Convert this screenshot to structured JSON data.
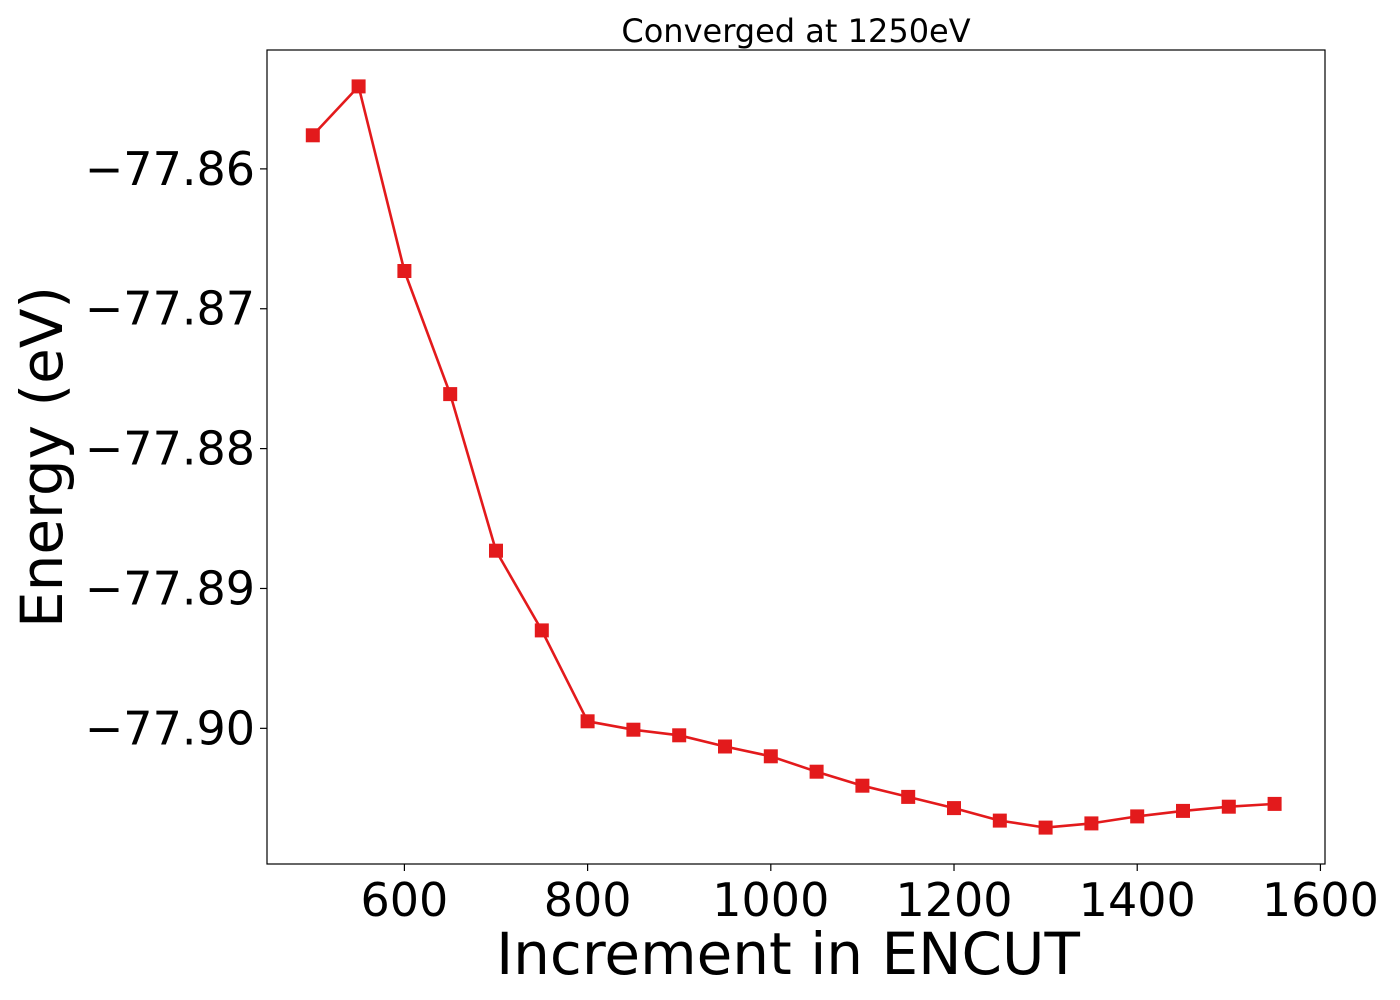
{
  "chart_data": {
    "type": "line",
    "title": "Converged at 1250eV",
    "xlabel": "Increment in ENCUT",
    "ylabel": "Energy (eV)",
    "xlim": [
      450,
      1605
    ],
    "ylim": [
      -77.9097,
      -77.8515
    ],
    "x_ticks": [
      600,
      800,
      1000,
      1200,
      1400,
      1600
    ],
    "x_tick_labels": [
      "600",
      "800",
      "1000",
      "1200",
      "1400",
      "1600"
    ],
    "y_ticks": [
      -77.86,
      -77.87,
      -77.88,
      -77.89,
      -77.9
    ],
    "y_tick_labels": [
      "−77.86",
      "−77.87",
      "−77.88",
      "−77.89",
      "−77.90"
    ],
    "grid": false,
    "marker": "square",
    "series": [
      {
        "color": "#e31a1c",
        "x": [
          500,
          550,
          600,
          650,
          700,
          750,
          800,
          850,
          900,
          950,
          1000,
          1050,
          1100,
          1150,
          1200,
          1250,
          1300,
          1350,
          1400,
          1450,
          1500,
          1550
        ],
        "y": [
          -77.8576,
          -77.8541,
          -77.8673,
          -77.8761,
          -77.8873,
          -77.893,
          -77.8995,
          -77.9001,
          -77.9005,
          -77.9013,
          -77.902,
          -77.9031,
          -77.9041,
          -77.9049,
          -77.9057,
          -77.9066,
          -77.9071,
          -77.9068,
          -77.9063,
          -77.9059,
          -77.9056,
          -77.9054
        ]
      }
    ]
  }
}
